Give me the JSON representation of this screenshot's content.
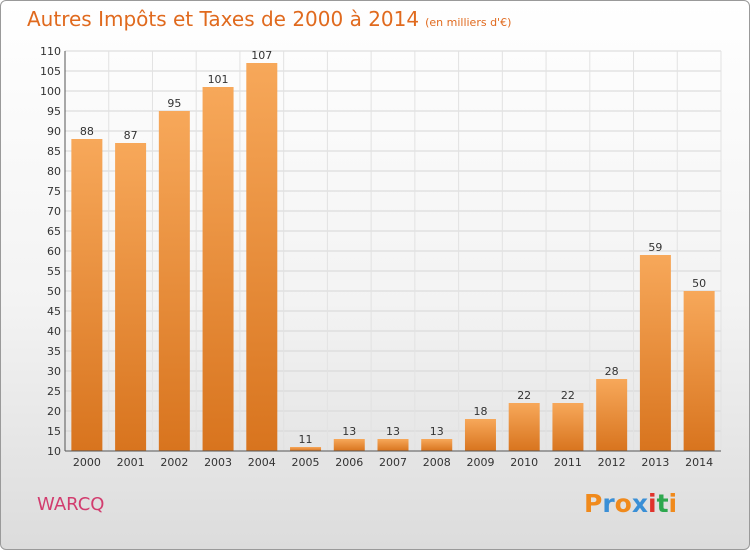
{
  "chart_data": {
    "type": "bar",
    "title": "Autres Impôts et Taxes de 2000 à 2014",
    "subtitle": "(en milliers d'€)",
    "categories": [
      "2000",
      "2001",
      "2002",
      "2003",
      "2004",
      "2005",
      "2006",
      "2007",
      "2008",
      "2009",
      "2010",
      "2011",
      "2012",
      "2013",
      "2014"
    ],
    "values": [
      88,
      87,
      95,
      101,
      107,
      11,
      13,
      13,
      13,
      18,
      22,
      22,
      28,
      59,
      50
    ],
    "ylim": [
      10,
      110
    ],
    "yticks": [
      10,
      15,
      20,
      25,
      30,
      35,
      40,
      45,
      50,
      55,
      60,
      65,
      70,
      75,
      80,
      85,
      90,
      95,
      100,
      105,
      110
    ],
    "grid": true,
    "bar_color": "#f0923a",
    "xlabel": "",
    "ylabel": ""
  },
  "footer": {
    "commune": "WARCQ",
    "brand": [
      "P",
      "r",
      "o",
      "x",
      "i",
      "t",
      "i"
    ],
    "brand_colors": [
      "#f08a1c",
      "#3a8fd6",
      "#f08a1c",
      "#3a8fd6",
      "#e0332c",
      "#2ea84f",
      "#f08a1c"
    ]
  }
}
